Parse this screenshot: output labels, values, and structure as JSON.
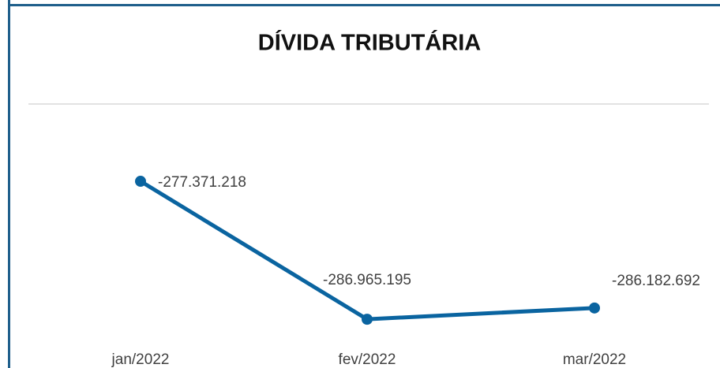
{
  "chart_data": {
    "type": "line",
    "title": "DÍVIDA TRIBUTÁRIA",
    "categories": [
      "jan/2022",
      "fev/2022",
      "mar/2022"
    ],
    "series": [
      {
        "name": "Dívida Tributária",
        "color": "#0a64a0",
        "values": [
          -277371218,
          -286965195,
          -286182692
        ],
        "value_labels": [
          "-277.371.218",
          "-286.965.195",
          "-286.182.692"
        ]
      }
    ],
    "ylim": [
      -288000000,
      -272000000
    ]
  }
}
